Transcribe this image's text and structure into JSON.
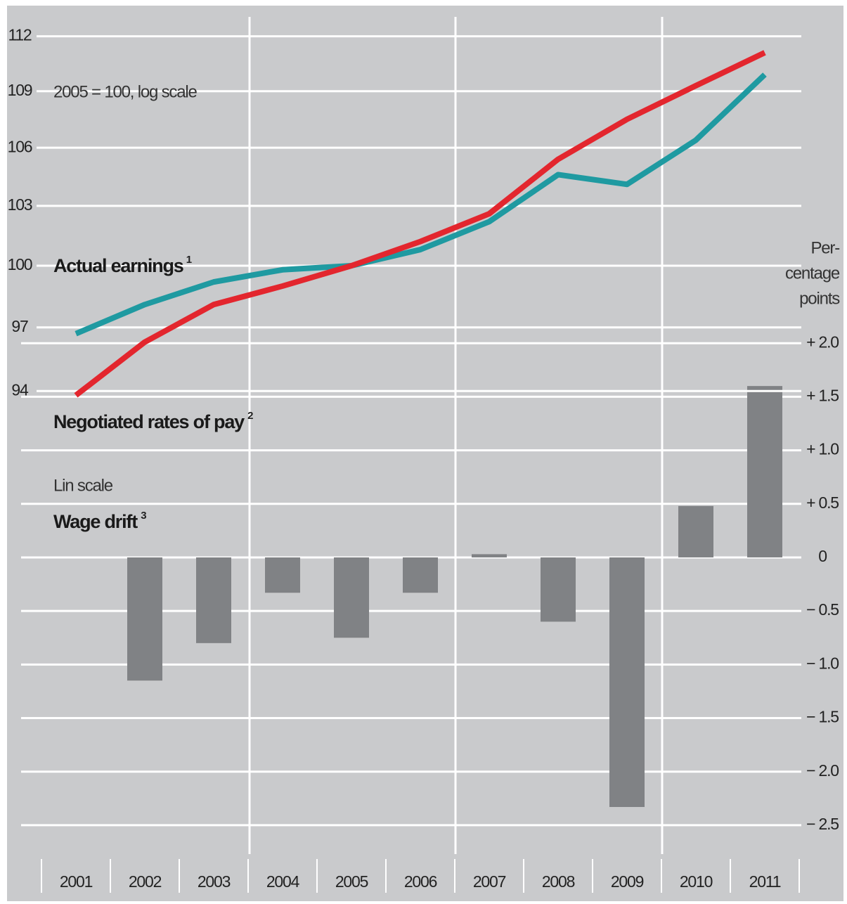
{
  "chart_data": [
    {
      "type": "line",
      "subtitle": "2005 = 100, log scale",
      "log_scale": true,
      "ylim": [
        93,
        113
      ],
      "yticks": [
        94,
        97,
        100,
        103,
        106,
        109,
        112
      ],
      "grid": true,
      "series": [
        {
          "name": "Actual earnings",
          "footnote": "1",
          "color": "#1f9aa1",
          "values": [
            96.7,
            98.1,
            99.2,
            99.8,
            100.0,
            100.8,
            102.2,
            104.6,
            104.1,
            106.4,
            109.9
          ]
        },
        {
          "name": "Negotiated rates of pay",
          "footnote": "2",
          "color": "#e3262e",
          "values": [
            93.8,
            96.3,
            98.1,
            99.0,
            100.0,
            101.2,
            102.6,
            105.4,
            107.5,
            109.3,
            111.1
          ]
        }
      ]
    },
    {
      "type": "bar",
      "subtitle": "Lin scale",
      "y2_label": [
        "Per-",
        "centage",
        "points"
      ],
      "categories": [
        "2001",
        "2002",
        "2003",
        "2004",
        "2005",
        "2006",
        "2007",
        "2008",
        "2009",
        "2010",
        "2011"
      ],
      "ylim": [
        -2.75,
        2.5
      ],
      "yticks": [
        {
          "value": 2.0,
          "label": "+ 2.0"
        },
        {
          "value": 1.5,
          "label": "+ 1.5"
        },
        {
          "value": 1.0,
          "label": "+ 1.0"
        },
        {
          "value": 0.5,
          "label": "+ 0.5"
        },
        0,
        {
          "value": -0.5,
          "label": "− 0.5"
        },
        {
          "value": -1.0,
          "label": "− 1.0"
        },
        {
          "value": -1.5,
          "label": "− 1.5"
        },
        {
          "value": -2.0,
          "label": "− 2.0"
        },
        {
          "value": -2.5,
          "label": "− 2.5"
        }
      ],
      "grid": true,
      "series": [
        {
          "name": "Wage drift",
          "footnote": "3",
          "color": "#808285",
          "values": [
            null,
            -1.15,
            -0.8,
            -0.33,
            -0.75,
            -0.33,
            0.03,
            -0.6,
            -2.33,
            0.48,
            1.6
          ]
        }
      ]
    }
  ]
}
